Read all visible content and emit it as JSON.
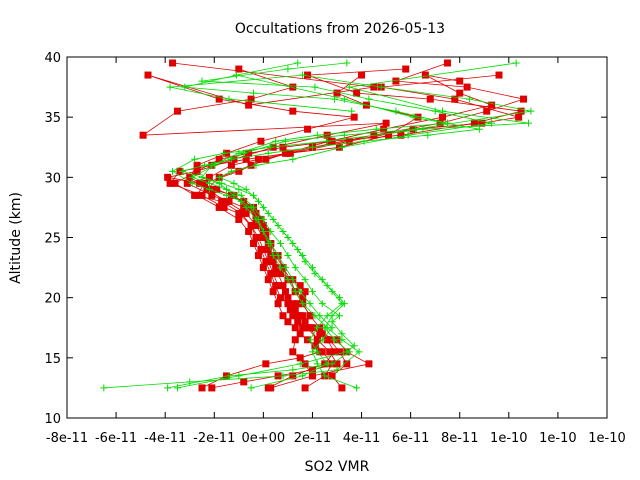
{
  "chart_data": {
    "type": "line",
    "title": "Occultations from 2026-05-13",
    "xlabel": "SO2 VMR",
    "ylabel": "Altitude (km)",
    "xlim": [
      -8e-11,
      1.4e-10
    ],
    "ylim": [
      10,
      40
    ],
    "x_ticks": [
      -8e-11,
      -6e-11,
      -4e-11,
      -2e-11,
      0,
      2e-11,
      4e-11,
      6e-11,
      8e-11,
      1e-10,
      1.2e-10,
      1.4e-10
    ],
    "x_tick_labels": [
      "-8e-11",
      "-6e-11",
      "-4e-11",
      "-2e-11",
      "0e+00",
      "2e-11",
      "4e-11",
      "6e-11",
      "8e-11",
      "1e-10",
      "1e-10",
      "1e-10"
    ],
    "y_ticks": [
      10,
      15,
      20,
      25,
      30,
      35,
      40
    ],
    "y_tick_labels": [
      "10",
      "15",
      "20",
      "25",
      "30",
      "35",
      "40"
    ],
    "grid": false,
    "legend": "none",
    "series": [
      {
        "marker": "square",
        "color": "#e00000",
        "x": [
          3e-12,
          2e-11,
          4.3e-11,
          3.4e-11,
          3e-11,
          2.4e-11,
          1.8e-11,
          1.4e-11,
          1.2e-11,
          1.1e-11,
          1.4e-11,
          1.6e-11,
          1.7e-11,
          1.5e-11,
          1.2e-11,
          7e-12,
          5e-12,
          3e-12,
          3e-12,
          2e-12,
          2e-12,
          1e-12,
          1e-12,
          0,
          -1e-12,
          -3e-12,
          -8e-12,
          -1.4e-11,
          -2.1e-11,
          -3.1e-11,
          -2.2e-11,
          -1.3e-11,
          -2e-12,
          1.1e-11,
          3.5e-11,
          6.1e-11,
          8.9e-11,
          1.04e-10,
          7.8e-11,
          4.8e-11,
          9.6e-11
        ],
        "y": [
          12.5,
          13.5,
          14.5,
          15.5,
          16.5,
          17.0,
          17.5,
          18.0,
          18.5,
          19.0,
          19.5,
          20.0,
          20.5,
          21.0,
          21.5,
          22.0,
          22.5,
          23.0,
          23.5,
          24.0,
          24.5,
          25.0,
          25.5,
          26.0,
          26.5,
          27.0,
          27.5,
          28.0,
          28.5,
          29.5,
          30.0,
          31.0,
          31.5,
          32.0,
          33.0,
          34.0,
          34.5,
          35.0,
          36.5,
          37.5,
          38.5
        ]
      },
      {
        "marker": "square",
        "color": "#e00000",
        "x": [
          1.7e-11,
          2.5e-11,
          2.8e-11,
          2.4e-11,
          2.1e-11,
          1.8e-11,
          1.5e-11,
          1.3e-11,
          1e-11,
          8e-12,
          6e-12,
          4e-12,
          2e-12,
          0,
          -2e-12,
          -4e-12,
          -6e-12,
          -1e-11,
          -1.8e-11,
          -2.7e-11,
          -2.4e-11,
          -1e-11,
          1e-12,
          2e-11,
          4.5e-11,
          7.2e-11,
          9.1e-11,
          1.06e-10,
          8.3e-11,
          5.4e-11,
          7.5e-11
        ],
        "y": [
          12.5,
          13.5,
          14.5,
          15.5,
          16.0,
          16.5,
          17.0,
          17.5,
          18.0,
          18.5,
          19.5,
          20.5,
          21.5,
          22.5,
          23.5,
          24.5,
          25.5,
          26.5,
          27.5,
          28.5,
          29.5,
          30.5,
          31.5,
          32.5,
          33.5,
          34.5,
          35.5,
          36.5,
          37.5,
          38.0,
          39.5
        ]
      },
      {
        "marker": "square",
        "color": "#e00000",
        "x": [
          -2.5e-11,
          -1.5e-11,
          1e-12,
          1.5e-11,
          2.3e-11,
          2.2e-11,
          1.9e-11,
          1.6e-11,
          1.3e-11,
          1e-11,
          7e-12,
          5e-12,
          3e-12,
          1e-12,
          -1e-12,
          -3e-12,
          -5e-12,
          -9e-12,
          -1.7e-11,
          -2.8e-11,
          -3.6e-11,
          -2.7e-11,
          -1.8e-11,
          -6e-12,
          8e-12,
          2.8e-11,
          5.6e-11,
          8.6e-11,
          1.05e-10,
          6.8e-11,
          3.8e-11,
          1.8e-11,
          5.8e-11
        ],
        "y": [
          12.5,
          13.5,
          14.5,
          15.0,
          15.5,
          16.5,
          17.5,
          18.5,
          19.0,
          19.5,
          20.0,
          21.0,
          22.0,
          23.0,
          24.0,
          25.0,
          26.0,
          27.0,
          28.0,
          28.5,
          29.5,
          30.5,
          31.5,
          32.0,
          32.5,
          33.0,
          33.5,
          34.5,
          35.5,
          36.5,
          37.0,
          38.5,
          39.0
        ]
      },
      {
        "marker": "square",
        "color": "#e00000",
        "x": [
          3.2e-11,
          2.8e-11,
          3.4e-11,
          3.1e-11,
          2.7e-11,
          2.3e-11,
          2e-11,
          1.7e-11,
          1.4e-11,
          1.2e-11,
          1e-11,
          8e-12,
          6e-12,
          4e-12,
          2e-12,
          0,
          -3e-12,
          -7e-12,
          -1.5e-11,
          -2.3e-11,
          -1.8e-11,
          -5e-12,
          9e-12,
          2.7e-11,
          4.9e-11,
          7.3e-11,
          9.3e-11,
          8e-11,
          6.6e-11,
          8e-11
        ],
        "y": [
          12.5,
          13.5,
          14.5,
          15.5,
          16.5,
          17.0,
          17.5,
          18.0,
          18.5,
          19.0,
          20.0,
          21.0,
          22.0,
          23.0,
          24.0,
          25.0,
          26.0,
          27.0,
          28.0,
          29.0,
          30.0,
          31.0,
          32.0,
          33.0,
          34.0,
          35.0,
          36.0,
          37.0,
          38.5,
          38.0
        ]
      },
      {
        "marker": "square",
        "color": "#e00000",
        "x": [
          -2.1e-11,
          -8e-12,
          6e-12,
          2e-11,
          3e-11,
          2.7e-11,
          2.2e-11,
          1.8e-11,
          1.5e-11,
          1.2e-11,
          9e-12,
          6e-12,
          4e-12,
          2e-12,
          0,
          -2e-12,
          -5e-12,
          -1e-11,
          -1.6e-11,
          -2.5e-11,
          -3.8e-11,
          -3.4e-11,
          -2.1e-11,
          -7e-12,
          1e-11,
          3.1e-11,
          5.1e-11,
          6.3e-11,
          4.2e-11,
          3e-11,
          4e-11
        ],
        "y": [
          12.5,
          13.0,
          13.5,
          14.0,
          14.5,
          15.5,
          16.5,
          17.5,
          18.5,
          19.5,
          20.5,
          21.0,
          22.0,
          23.0,
          24.0,
          25.0,
          26.0,
          27.0,
          27.5,
          28.5,
          29.5,
          30.5,
          31.0,
          31.5,
          32.0,
          32.5,
          33.5,
          35.0,
          36.0,
          37.0,
          38.5
        ]
      },
      {
        "marker": "square",
        "color": "#e00000",
        "x": [
          2e-12,
          1.2e-11,
          2.5e-11,
          2.9e-11,
          2.6e-11,
          2.3e-11,
          1.9e-11,
          1.6e-11,
          1.3e-11,
          1.1e-11,
          8e-12,
          6e-12,
          3e-12,
          1e-12,
          -1e-12,
          -4e-12,
          -8e-12,
          -1.3e-11,
          -1.9e-11,
          -2.6e-11,
          -3.9e-11,
          -2.7e-11,
          -1.2e-11,
          4e-12,
          2.6e-11,
          5e-11,
          -4.9e-11,
          -3.5e-11,
          -5e-12,
          1.2e-11,
          -1e-11
        ],
        "y": [
          12.5,
          13.5,
          14.5,
          15.5,
          16.5,
          17.5,
          18.5,
          19.5,
          20.5,
          21.5,
          22.5,
          23.5,
          24.5,
          25.5,
          26.5,
          27.5,
          28.0,
          28.5,
          29.0,
          29.5,
          30.0,
          30.5,
          31.5,
          32.5,
          33.5,
          34.5,
          33.5,
          35.5,
          36.5,
          37.5,
          39.0
        ]
      },
      {
        "marker": "square",
        "color": "#e00000",
        "x": [
          2e-11,
          1.7e-11,
          1.2e-11,
          1.3e-11,
          1.6e-11,
          1.9e-11,
          1.6e-11,
          1.3e-11,
          1e-11,
          8e-12,
          5e-12,
          3e-12,
          0,
          -3e-12,
          -6e-12,
          -1.2e-11,
          -2.1e-11,
          -3e-11,
          -2.7e-11,
          -1.5e-11,
          -1e-12,
          1.8e-11,
          3.7e-11,
          1.2e-11,
          -1.8e-11,
          -4.7e-11,
          -6e-12,
          4.5e-11,
          -3.7e-11
        ],
        "y": [
          13.5,
          14.5,
          15.5,
          16.5,
          17.5,
          18.5,
          19.5,
          20.5,
          21.5,
          22.5,
          23.5,
          24.5,
          25.5,
          26.5,
          27.5,
          28.5,
          29.0,
          30.0,
          31.0,
          32.0,
          33.0,
          34.0,
          35.0,
          35.5,
          36.5,
          38.5,
          36.0,
          37.5,
          39.5
        ]
      },
      {
        "marker": "plus",
        "color": "#00dd00",
        "x": [
          -6.5e-11,
          -3e-11,
          8e-12,
          3e-11,
          3.9e-11,
          3.2e-11,
          2.6e-11,
          2.1e-11,
          1.6e-11,
          1.3e-11,
          1e-11,
          7e-12,
          4e-12,
          2e-12,
          0,
          -2e-12,
          -5e-12,
          -9e-12,
          -1.5e-11,
          -2.2e-11,
          -2.9e-11,
          -3.7e-11,
          -2.8e-11,
          -1.6e-11,
          3e-12,
          2.6e-11,
          6.5e-11,
          1.08e-10,
          7.3e-11,
          3.5e-11,
          1.03e-10
        ],
        "y": [
          12.5,
          13.0,
          13.5,
          14.0,
          15.5,
          16.5,
          17.5,
          18.5,
          19.5,
          20.5,
          21.5,
          22.5,
          23.5,
          24.5,
          25.5,
          26.5,
          27.5,
          28.0,
          28.5,
          29.0,
          29.5,
          30.5,
          31.5,
          32.0,
          32.5,
          33.0,
          34.0,
          34.5,
          35.5,
          37.5,
          39.5
        ]
      },
      {
        "marker": "plus",
        "color": "#00dd00",
        "x": [
          -3.5e-11,
          -1e-11,
          1.5e-11,
          3.4e-11,
          3.7e-11,
          3.2e-11,
          2.8e-11,
          3.1e-11,
          2.4e-11,
          2e-11,
          1.7e-11,
          1.3e-11,
          1e-11,
          7e-12,
          3e-12,
          0,
          -4e-12,
          -9e-12,
          -1.5e-11,
          -2.2e-11,
          -2.9e-11,
          -2e-11,
          -8e-12,
          9e-12,
          3.3e-11,
          6.2e-11,
          1.09e-10,
          8.4e-11,
          4.8e-11,
          1.6e-11,
          -3.8e-11,
          -1.4e-11,
          3.6e-11
        ],
        "y": [
          12.5,
          13.5,
          14.5,
          15.5,
          16.0,
          17.0,
          18.0,
          18.5,
          19.5,
          20.5,
          21.5,
          22.5,
          23.5,
          24.5,
          25.5,
          26.5,
          27.5,
          28.5,
          29.0,
          29.5,
          30.0,
          31.0,
          32.0,
          33.0,
          33.5,
          34.0,
          35.5,
          36.5,
          37.5,
          38.5,
          37.5,
          36.5,
          35.5
        ]
      },
      {
        "marker": "plus",
        "color": "#00dd00",
        "x": [
          -3.9e-11,
          -1.4e-11,
          1.2e-11,
          2.8e-11,
          3.5e-11,
          2.9e-11,
          2.5e-11,
          2.8e-11,
          3.3e-11,
          3.1e-11,
          2.6e-11,
          2.1e-11,
          1.7e-11,
          1.4e-11,
          1e-11,
          6e-12,
          2e-12,
          -2e-12,
          -7e-12,
          -1.2e-11,
          -1.8e-11,
          -1.3e-11,
          -3e-12,
          1.2e-11,
          3.2e-11,
          5.9e-11,
          9.3e-11,
          7e-11,
          4.3e-11,
          2.1e-11,
          -2.5e-11,
          1e-11,
          3.4e-11
        ],
        "y": [
          12.5,
          13.5,
          14.0,
          14.5,
          15.5,
          16.5,
          17.5,
          18.5,
          19.5,
          20.0,
          21.0,
          22.0,
          23.0,
          24.0,
          25.0,
          26.0,
          27.0,
          28.0,
          29.0,
          29.5,
          30.0,
          30.5,
          31.0,
          31.5,
          32.5,
          33.5,
          34.5,
          35.5,
          36.5,
          37.5,
          38.0,
          39.0,
          39.5
        ]
      },
      {
        "marker": "plus",
        "color": "#00dd00",
        "x": [
          3.8e-11,
          2.5e-11,
          2.2e-11,
          2e-11,
          2.4e-11,
          2.8e-11,
          2.3e-11,
          1.9e-11,
          1.5e-11,
          1.2e-11,
          9e-12,
          6e-12,
          3e-12,
          0,
          -3e-12,
          -7e-12,
          -1.2e-11,
          -1.8e-11,
          -2.5e-11,
          -2.1e-11,
          -1e-11,
          5e-12,
          2.2e-11,
          4.6e-11,
          7.5e-11,
          5.4e-11,
          2.9e-11,
          -4e-12,
          -3.2e-11,
          -1.1e-11,
          1.4e-11
        ],
        "y": [
          12.5,
          13.5,
          14.5,
          15.5,
          16.5,
          17.5,
          18.5,
          19.5,
          20.5,
          21.5,
          22.5,
          23.5,
          24.5,
          25.5,
          26.5,
          27.5,
          28.5,
          29.5,
          30.0,
          31.0,
          32.0,
          33.0,
          33.5,
          34.0,
          34.5,
          35.5,
          36.5,
          37.0,
          37.5,
          38.5,
          39.5
        ]
      },
      {
        "marker": "plus",
        "color": "#00dd00",
        "x": [
          -5e-12,
          1.6e-11,
          2.6e-11,
          2.2e-11,
          1.9e-11,
          2.2e-11,
          2.6e-11,
          3.2e-11,
          2.8e-11,
          2.4e-11,
          2e-11,
          1.6e-11,
          1.2e-11,
          8e-12,
          4e-12,
          0,
          -4e-12,
          -1e-11,
          -1.7e-11,
          -2.5e-11,
          -3.3e-11,
          -2.4e-11,
          -1.3e-11,
          2e-12,
          2e-11,
          4.1e-11,
          6.7e-11,
          8.8e-11,
          6.1e-11,
          3.3e-11,
          -1.1e-11
        ],
        "y": [
          12.5,
          13.5,
          14.5,
          15.5,
          16.5,
          17.5,
          18.5,
          19.5,
          20.5,
          21.5,
          22.5,
          23.5,
          24.5,
          25.5,
          26.5,
          27.5,
          28.5,
          29.0,
          29.5,
          30.0,
          30.5,
          31.0,
          31.5,
          32.0,
          32.5,
          33.0,
          33.5,
          34.0,
          35.0,
          36.5,
          38.5
        ]
      }
    ]
  }
}
